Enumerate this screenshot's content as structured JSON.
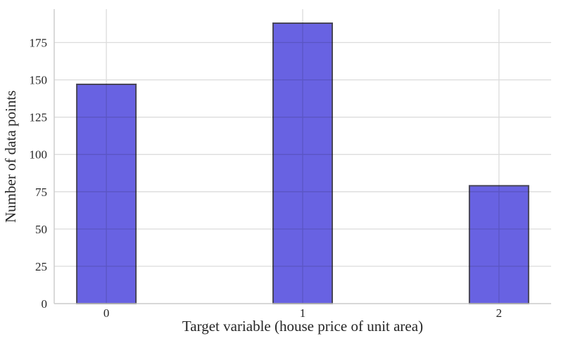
{
  "chart_data": {
    "type": "bar",
    "title": "",
    "xlabel": "Target variable (house price of unit area)",
    "ylabel": "Number of data points",
    "categories": [
      "0",
      "1",
      "2"
    ],
    "values": [
      147,
      188,
      79
    ],
    "y_ticks": [
      0,
      25,
      50,
      75,
      100,
      125,
      150,
      175
    ],
    "ylim": [
      0,
      197.4
    ],
    "grid": true,
    "legend_position": "none",
    "colors": {
      "bar_fill": "#6862e2",
      "bar_edge": "#484658",
      "grid_line": "#dcdcdc",
      "spine": "#cbcbcb",
      "text": "#262626",
      "background": "#ffffff"
    }
  }
}
